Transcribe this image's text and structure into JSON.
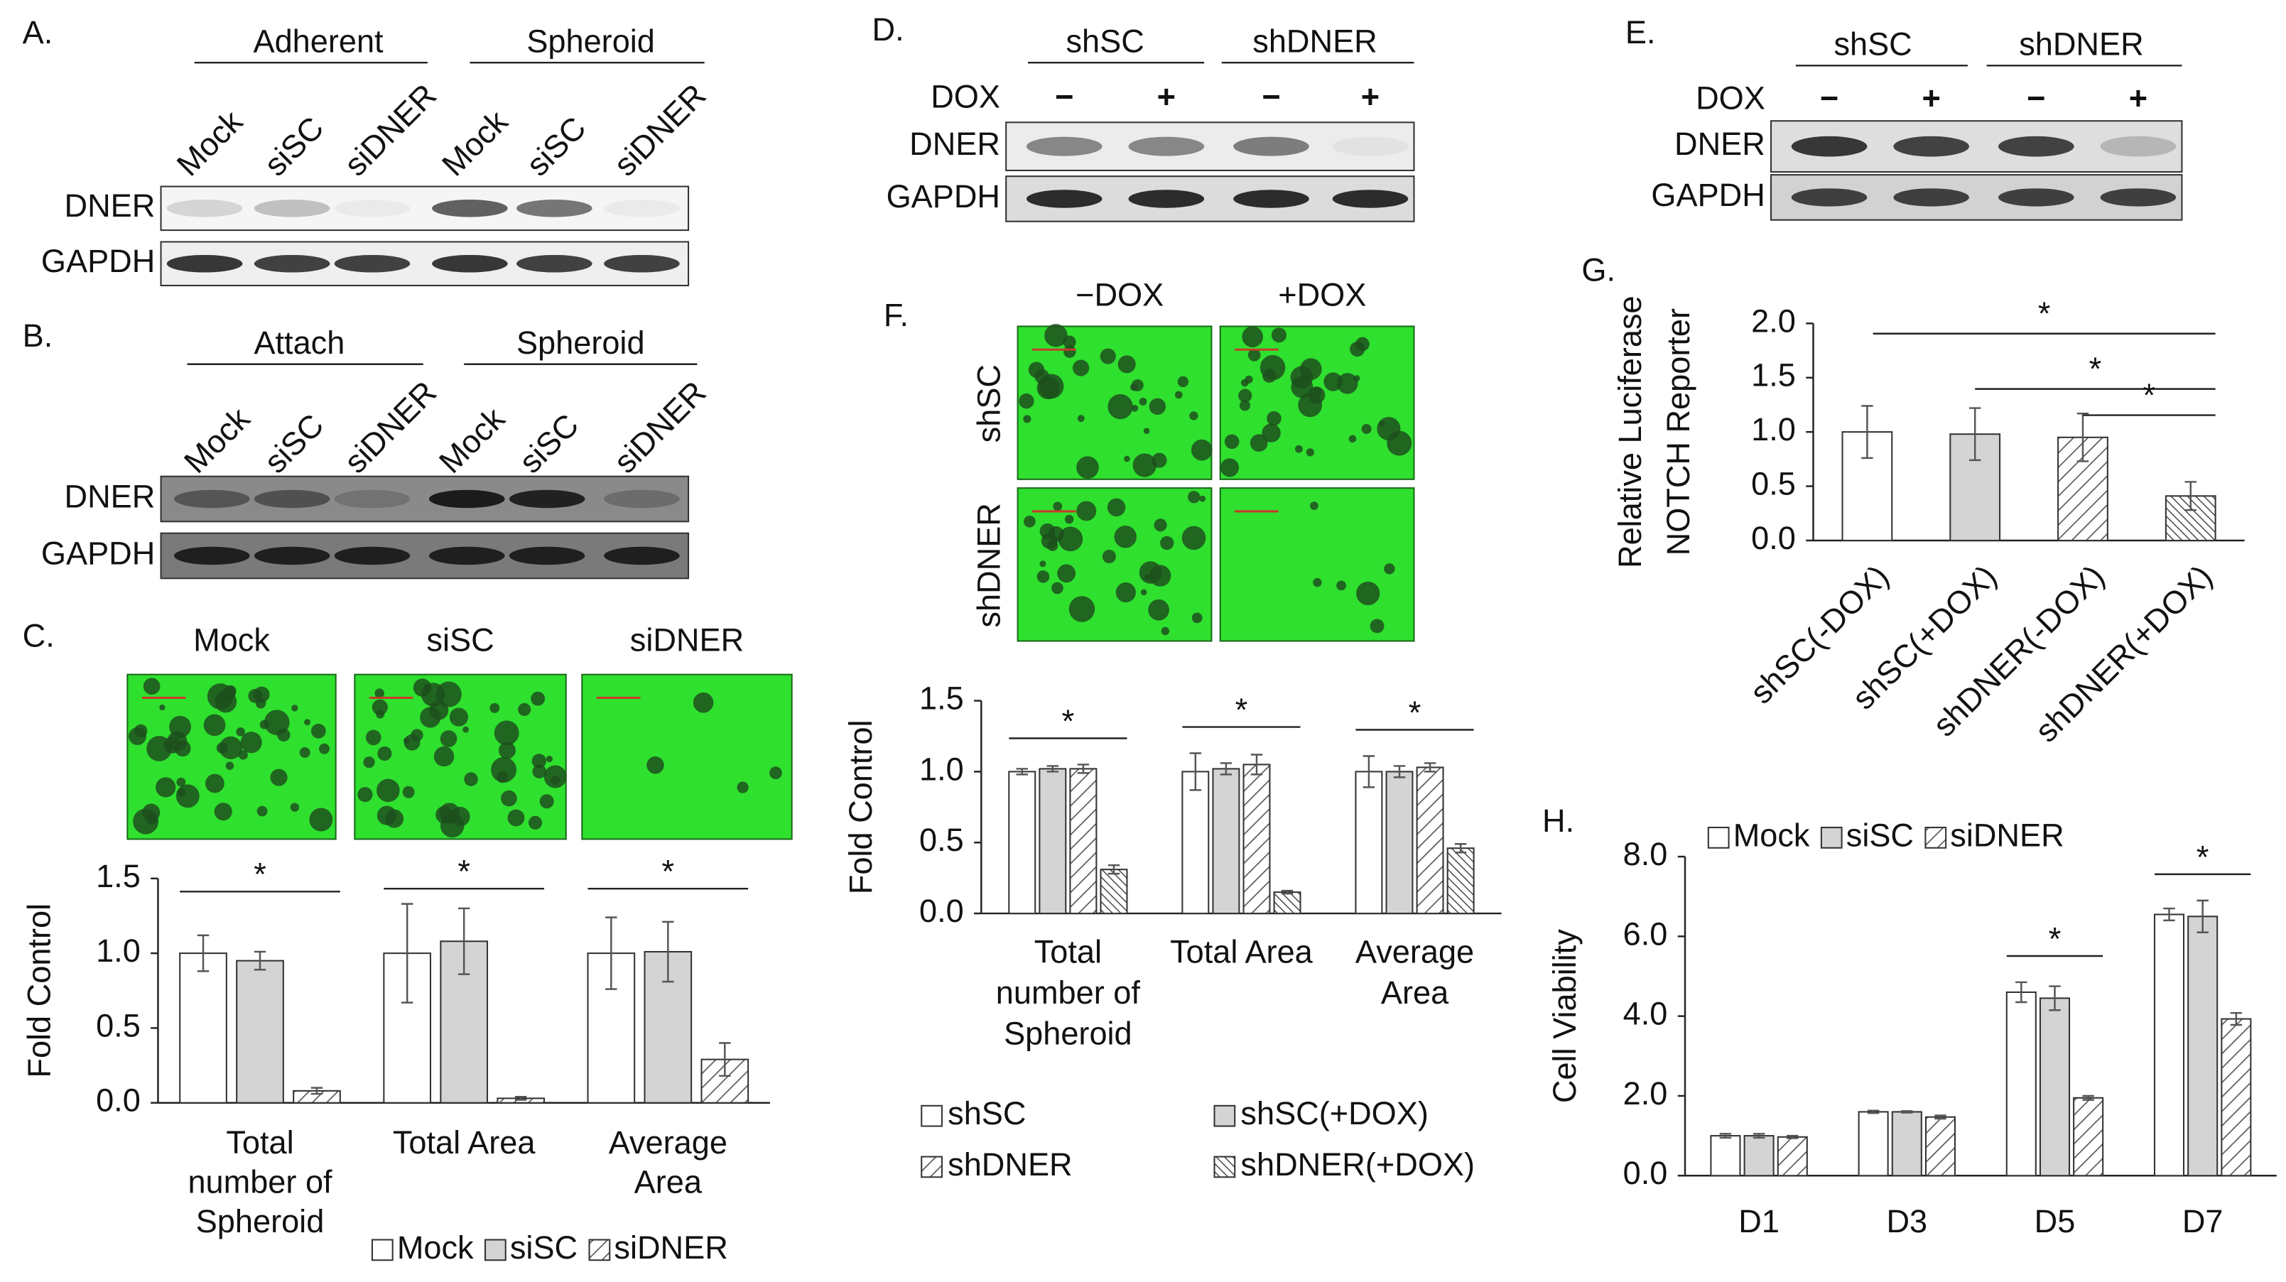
{
  "blots": [
    {
      "label": "A.",
      "groups": [
        "Adherent",
        "Spheroid"
      ],
      "lanes": [
        "Mock",
        "siSC",
        "siDNER",
        "Mock",
        "siSC",
        "siDNER"
      ],
      "rows": [
        "DNER",
        "GAPDH"
      ]
    },
    {
      "label": "B.",
      "groups": [
        "Attach",
        "Spheroid"
      ],
      "lanes": [
        "Mock",
        "siSC",
        "siDNER",
        "Mock",
        "siSC",
        "siDNER"
      ],
      "rows": [
        "DNER",
        "GAPDH"
      ]
    },
    {
      "label": "D.",
      "groups": [
        "shSC",
        "shDNER"
      ],
      "treatment": "DOX",
      "lanes": [
        "−",
        "+",
        "−",
        "+"
      ],
      "rows": [
        "DNER",
        "GAPDH"
      ]
    },
    {
      "label": "E.",
      "groups": [
        "shSC",
        "shDNER"
      ],
      "treatment": "DOX",
      "lanes": [
        "−",
        "+",
        "−",
        "+"
      ],
      "rows": [
        "DNER",
        "GAPDH"
      ]
    }
  ],
  "images": [
    {
      "label": "C.",
      "columns": [
        "Mock",
        "siSC",
        "siDNER"
      ]
    },
    {
      "label": "F.",
      "columns": [
        "−DOX",
        "+DOX"
      ],
      "rows": [
        "shSC",
        "shDNER"
      ]
    }
  ],
  "chart_data": [
    {
      "type": "bar",
      "ylabel": "Fold  Control",
      "categories": [
        "Total number of Spheroid",
        "Total Area",
        "Average Area"
      ],
      "series": [
        {
          "name": "Mock",
          "color": "#ffffff",
          "pattern": "solid",
          "values": [
            1.0,
            1.0,
            1.0
          ],
          "errors": [
            0.12,
            0.33,
            0.24
          ]
        },
        {
          "name": "siSC",
          "color": "#d4d4d4",
          "pattern": "solid",
          "values": [
            0.95,
            1.08,
            1.01
          ],
          "errors": [
            0.06,
            0.22,
            0.2
          ]
        },
        {
          "name": "siDNER",
          "color": "#ffffff",
          "pattern": "hatch",
          "values": [
            0.08,
            0.03,
            0.29
          ],
          "errors": [
            0.02,
            0.01,
            0.11
          ]
        }
      ],
      "stars": [
        "*",
        "*",
        "*"
      ],
      "ylim": [
        0,
        1.5
      ],
      "yticks": [
        {
          "value": 0,
          "label": "0.0"
        },
        {
          "value": 0.5,
          "label": "0.5"
        },
        {
          "value": 1,
          "label": "1.0"
        },
        {
          "value": 1.5,
          "label": "1.5"
        }
      ],
      "legend": "bottom-row"
    },
    {
      "type": "bar",
      "ylabel": "Fold Control",
      "categories": [
        "Total number of Spheroid",
        "Total Area",
        "Average Area"
      ],
      "series": [
        {
          "name": "shSC",
          "color": "#ffffff",
          "pattern": "solid",
          "values": [
            1.0,
            1.0,
            1.0
          ],
          "errors": [
            0.02,
            0.13,
            0.11
          ]
        },
        {
          "name": "shSC(+DOX)",
          "color": "#d4d4d4",
          "pattern": "solid",
          "values": [
            1.02,
            1.02,
            1.0
          ],
          "errors": [
            0.02,
            0.04,
            0.04
          ]
        },
        {
          "name": "shDNER",
          "color": "#ffffff",
          "pattern": "hatch",
          "values": [
            1.02,
            1.05,
            1.03
          ],
          "errors": [
            0.03,
            0.07,
            0.03
          ]
        },
        {
          "name": "shDNER(+DOX)",
          "color": "#ffffff",
          "pattern": "dense",
          "values": [
            0.31,
            0.15,
            0.46
          ],
          "errors": [
            0.03,
            0.01,
            0.03
          ]
        }
      ],
      "stars": [
        "*",
        "*",
        "*"
      ],
      "ylim": [
        0,
        1.5
      ],
      "yticks": [
        {
          "value": 0,
          "label": "0.0"
        },
        {
          "value": 0.5,
          "label": "0.5"
        },
        {
          "value": 1,
          "label": "1.0"
        },
        {
          "value": 1.5,
          "label": "1.5"
        }
      ],
      "legend": "bottom-grid"
    },
    {
      "type": "bar",
      "label": "G.",
      "ylabel": [
        "Relative Luciferase",
        "NOTCH Reporter"
      ],
      "categories": [
        "shSC(-DOX)",
        "shSC(+DOX)",
        "shDNER(-DOX)",
        "shDNER(+DOX)"
      ],
      "values": [
        1.0,
        0.98,
        0.95,
        0.41
      ],
      "errors": [
        0.24,
        0.24,
        0.22,
        0.13
      ],
      "colors": [
        "#ffffff",
        "#d4d4d4",
        "#ffffff",
        "#ffffff"
      ],
      "patterns": [
        "solid",
        "solid",
        "hatch",
        "dense"
      ],
      "brackets": [
        {
          "from": 0,
          "to": 3,
          "label": "*"
        },
        {
          "from": 1,
          "to": 3,
          "label": "*"
        },
        {
          "from": 2,
          "to": 3,
          "label": "*"
        }
      ],
      "rotate_labels": true,
      "ylim": [
        0,
        2
      ],
      "yticks": [
        {
          "value": 0,
          "label": "0.0"
        },
        {
          "value": 0.5,
          "label": "0.5"
        },
        {
          "value": 1,
          "label": "1.0"
        },
        {
          "value": 1.5,
          "label": "1.5"
        },
        {
          "value": 2,
          "label": "2.0"
        }
      ]
    },
    {
      "type": "bar",
      "label": "H.",
      "ylabel": "Cell Viability",
      "categories": [
        "D1",
        "D3",
        "D5",
        "D7"
      ],
      "series": [
        {
          "name": "Mock",
          "color": "#ffffff",
          "pattern": "solid",
          "values": [
            1.0,
            1.6,
            4.6,
            6.55
          ],
          "errors": [
            0.05,
            0.03,
            0.25,
            0.15
          ]
        },
        {
          "name": "siSC",
          "color": "#d4d4d4",
          "pattern": "solid",
          "values": [
            1.0,
            1.6,
            4.45,
            6.5
          ],
          "errors": [
            0.05,
            0.02,
            0.3,
            0.4
          ]
        },
        {
          "name": "siDNER",
          "color": "#ffffff",
          "pattern": "hatch",
          "values": [
            0.97,
            1.47,
            1.95,
            3.93
          ],
          "errors": [
            0.03,
            0.04,
            0.05,
            0.15
          ]
        }
      ],
      "stars": [
        null,
        null,
        "*",
        "*"
      ],
      "ylim": [
        0,
        8
      ],
      "yticks": [
        {
          "value": 0,
          "label": "0.0"
        },
        {
          "value": 2,
          "label": "2.0"
        },
        {
          "value": 4,
          "label": "4.0"
        },
        {
          "value": 6,
          "label": "6.0"
        },
        {
          "value": 8,
          "label": "8.0"
        }
      ],
      "legend": "top-row"
    }
  ]
}
